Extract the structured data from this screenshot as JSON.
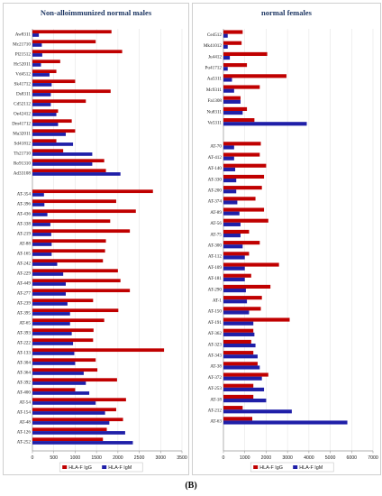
{
  "figure_label": "(B)",
  "colors": {
    "igg": "#c00000",
    "igm": "#1f1fa8",
    "axis": "#999999",
    "grid": "#e5e5e5"
  },
  "chart_data": [
    {
      "type": "bar",
      "orientation": "horizontal",
      "title": "Non-alloimmunized normal males",
      "xlim": [
        0,
        3500
      ],
      "xticks": [
        "0",
        "500",
        "1000",
        "1500",
        "2000",
        "2500",
        "3000",
        "3500"
      ],
      "legend": {
        "placement": "bottom",
        "entries": [
          "HLA-F IgG",
          "HLA-F IgM"
        ]
      },
      "groups": [
        {
          "categories": [
            "Aw8311",
            "Mc21710",
            "Pl21512",
            "Hc52011",
            "Vd4512",
            "Sk41712",
            "Ds8311",
            "Cd52112",
            "Oe42412",
            "Dm41712",
            "Ma32011",
            "Sd41812",
            "Th21710",
            "Ro91310",
            "Ad33108"
          ],
          "series": [
            {
              "name": "HLA-F IgG",
              "values": [
                1850,
                1480,
                2100,
                650,
                560,
                1000,
                1830,
                1250,
                600,
                920,
                1000,
                560,
                720,
                1680,
                1720
              ]
            },
            {
              "name": "HLA-F IgM",
              "values": [
                150,
                220,
                230,
                200,
                400,
                450,
                430,
                430,
                560,
                600,
                780,
                950,
                1400,
                1400,
                2060
              ]
            }
          ]
        },
        {
          "categories": [
            "AT-354",
            "AT-396",
            "AT-436",
            "AT-338",
            "AT-219",
            "AT-88",
            "AT-165",
            "AT-242",
            "AT-229",
            "AT-449",
            "AT-277",
            "AT-239",
            "AT-395",
            "AT-65",
            "AT-393",
            "AT-222",
            "AT-133",
            "AT-304",
            "AT-364",
            "AT-392",
            "AT-400",
            "AT-54",
            "AT-154",
            "AT-48",
            "AT-126",
            "AT-252"
          ],
          "series": [
            {
              "name": "HLA-F IgG",
              "values": [
                2820,
                1960,
                2420,
                1820,
                2280,
                1720,
                1700,
                1650,
                2000,
                2060,
                2280,
                1420,
                2010,
                1680,
                1430,
                1420,
                3080,
                1480,
                1520,
                1980,
                1000,
                2190,
                1960,
                2120,
                1740,
                1650
              ]
            },
            {
              "name": "HLA-F IgM",
              "values": [
                270,
                280,
                350,
                420,
                440,
                450,
                450,
                580,
                720,
                780,
                780,
                820,
                880,
                880,
                920,
                950,
                980,
                1000,
                1200,
                1250,
                1330,
                1480,
                1700,
                1800,
                2170,
                2350
              ]
            }
          ]
        }
      ]
    },
    {
      "type": "bar",
      "orientation": "horizontal",
      "title": "normal females",
      "xlim": [
        0,
        7000
      ],
      "xticks": [
        "0",
        "1000",
        "2000",
        "3000",
        "4000",
        "5000",
        "6000",
        "7000"
      ],
      "legend": {
        "placement": "bottom",
        "entries": [
          "HLA-F IgG",
          "HLA-F IgM"
        ]
      },
      "groups": [
        {
          "categories": [
            "Ce4512",
            "Mk41012",
            "Ju4412",
            "Pu41712",
            "Aa5311",
            "Mc9311",
            "Fa1308",
            "Nu8311",
            "Ve5311"
          ],
          "series": [
            {
              "name": "HLA-F IgG",
              "values": [
                900,
                850,
                2050,
                1100,
                2950,
                1700,
                800,
                1100,
                1450
              ]
            },
            {
              "name": "HLA-F IgM",
              "values": [
                200,
                200,
                300,
                200,
                400,
                500,
                800,
                900,
                3900
              ]
            }
          ]
        },
        {
          "categories": [
            "AT-70",
            "AT-412",
            "AT-140",
            "AT-330",
            "AT-200",
            "AT-374",
            "AT-89",
            "AT-56",
            "AT-75",
            "AT-300",
            "AT-112",
            "AT-109",
            "AT-181",
            "AT-290",
            "AT-1",
            "AT-150",
            "AT-191",
            "AT-362",
            "AT-323",
            "AT-343",
            "AT-38",
            "AT-372",
            "AT-253",
            "AT-18",
            "AT-212",
            "AT-63"
          ],
          "series": [
            {
              "name": "HLA-F IgG",
              "values": [
                1750,
                1700,
                2000,
                1900,
                1800,
                1500,
                1900,
                2100,
                1200,
                1700,
                1200,
                2600,
                1300,
                2200,
                1800,
                1750,
                3100,
                1400,
                1300,
                1400,
                1600,
                2100,
                1400,
                1400,
                900,
                1350
              ]
            },
            {
              "name": "HLA-F IgM",
              "values": [
                500,
                500,
                550,
                600,
                600,
                650,
                750,
                800,
                800,
                900,
                1000,
                1000,
                1000,
                1050,
                1100,
                1200,
                1400,
                1450,
                1500,
                1600,
                1700,
                1800,
                1900,
                2000,
                3200,
                5800
              ]
            }
          ]
        }
      ]
    }
  ]
}
